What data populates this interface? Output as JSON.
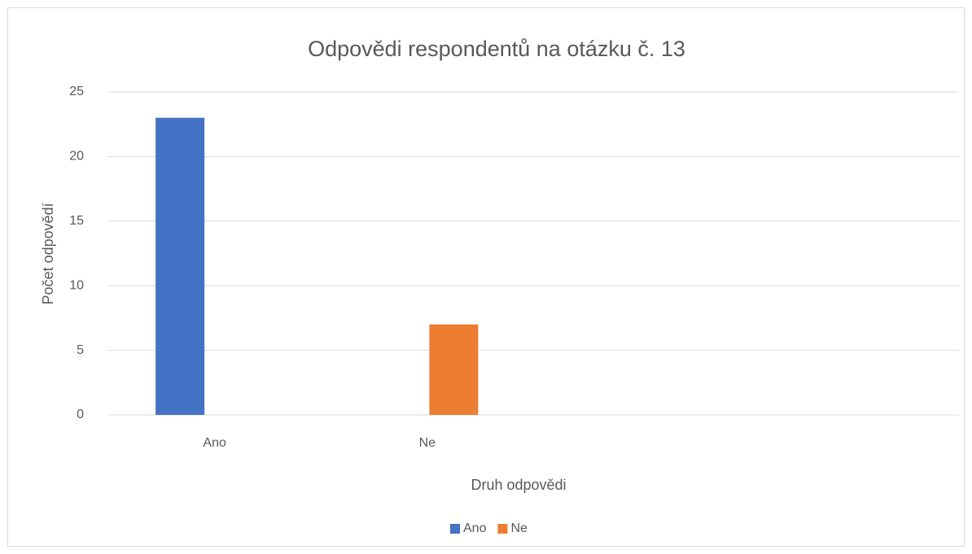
{
  "chart_data": {
    "type": "bar",
    "title": "Odpovědi respondentů na otázku č. 13",
    "x_label": "Druh odpovědi",
    "y_label": "Počet odpovědí",
    "categories": [
      "Ano",
      "Ne",
      null,
      null
    ],
    "series": [
      {
        "name": "Ano",
        "color": "#4472c4",
        "values": [
          23,
          null,
          null,
          null
        ]
      },
      {
        "name": "Ne",
        "color": "#ed7d31",
        "values": [
          null,
          7,
          null,
          null
        ]
      }
    ],
    "ylim": [
      0,
      25
    ],
    "yticks": [
      0,
      5,
      10,
      15,
      20,
      25
    ],
    "grid": true,
    "legend": "bottom"
  }
}
